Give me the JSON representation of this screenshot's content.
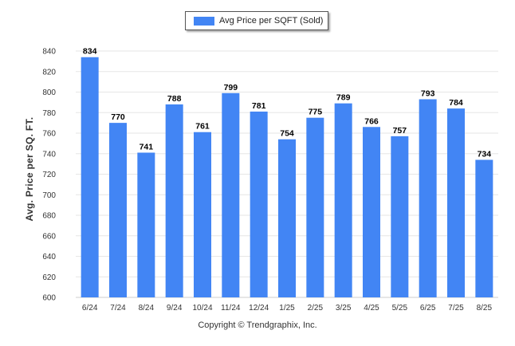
{
  "legend": {
    "label": "Avg Price per SQFT (Sold)"
  },
  "copyright": "Copyright © Trendgraphix, Inc.",
  "chart_data": {
    "type": "bar",
    "title": "",
    "xlabel": "",
    "ylabel": "Avg. Price per SQ. FT.",
    "ylim": [
      600,
      840
    ],
    "yticks": [
      600,
      620,
      640,
      660,
      680,
      700,
      720,
      740,
      760,
      780,
      800,
      820,
      840
    ],
    "grid": true,
    "legend_position": "top-center",
    "categories": [
      "6/24",
      "7/24",
      "8/24",
      "9/24",
      "10/24",
      "11/24",
      "12/24",
      "1/25",
      "2/25",
      "3/25",
      "4/25",
      "5/25",
      "6/25",
      "7/25",
      "8/25"
    ],
    "series": [
      {
        "name": "Avg Price per SQFT (Sold)",
        "color": "#4285f4",
        "values": [
          834,
          770,
          741,
          788,
          761,
          799,
          781,
          754,
          775,
          789,
          766,
          757,
          793,
          784,
          734
        ]
      }
    ]
  }
}
